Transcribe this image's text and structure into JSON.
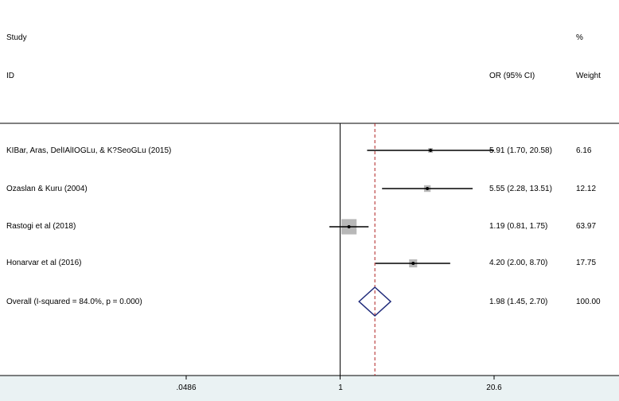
{
  "chart_data": {
    "type": "forest",
    "header": {
      "study_line1": "Study",
      "study_line2": "ID",
      "or_label": "OR (95% CI)",
      "weight_line1": "%",
      "weight_line2": "Weight"
    },
    "scale": "log",
    "xlim": [
      0.0486,
      20.6
    ],
    "null_line": 1,
    "pooled_line": 1.98,
    "x_ticks": [
      {
        "value": 0.0486,
        "label": ".0486"
      },
      {
        "value": 1,
        "label": "1"
      },
      {
        "value": 20.6,
        "label": "20.6"
      }
    ],
    "studies": [
      {
        "name": "KIBar, Aras, DelIAlIOGLu, & K?SeoGLu (2015)",
        "or": 5.91,
        "lo": 1.7,
        "hi": 20.58,
        "or_text": "5.91 (1.70, 20.58)",
        "weight": 6.16,
        "weight_text": "6.16"
      },
      {
        "name": "Ozaslan & Kuru (2004)",
        "or": 5.55,
        "lo": 2.28,
        "hi": 13.51,
        "or_text": "5.55 (2.28, 13.51)",
        "weight": 12.12,
        "weight_text": "12.12"
      },
      {
        "name": "Rastogi et al (2018)",
        "or": 1.19,
        "lo": 0.81,
        "hi": 1.75,
        "or_text": "1.19 (0.81, 1.75)",
        "weight": 63.97,
        "weight_text": "63.97"
      },
      {
        "name": "Honarvar et al (2016)",
        "or": 4.2,
        "lo": 2.0,
        "hi": 8.7,
        "or_text": "4.20 (2.00, 8.70)",
        "weight": 17.75,
        "weight_text": "17.75"
      }
    ],
    "overall": {
      "name": "Overall  (I-squared = 84.0%, p = 0.000)",
      "or": 1.98,
      "lo": 1.45,
      "hi": 2.7,
      "or_text": "1.98 (1.45, 2.70)",
      "weight_text": "100.00"
    },
    "colors": {
      "background": "#ffffff",
      "axis_band": "#eaf2f3",
      "diamond": "#1f2a7a",
      "pooled_line": "#b02020",
      "box": "#b8b8b8",
      "ci_line": "#000000"
    }
  }
}
